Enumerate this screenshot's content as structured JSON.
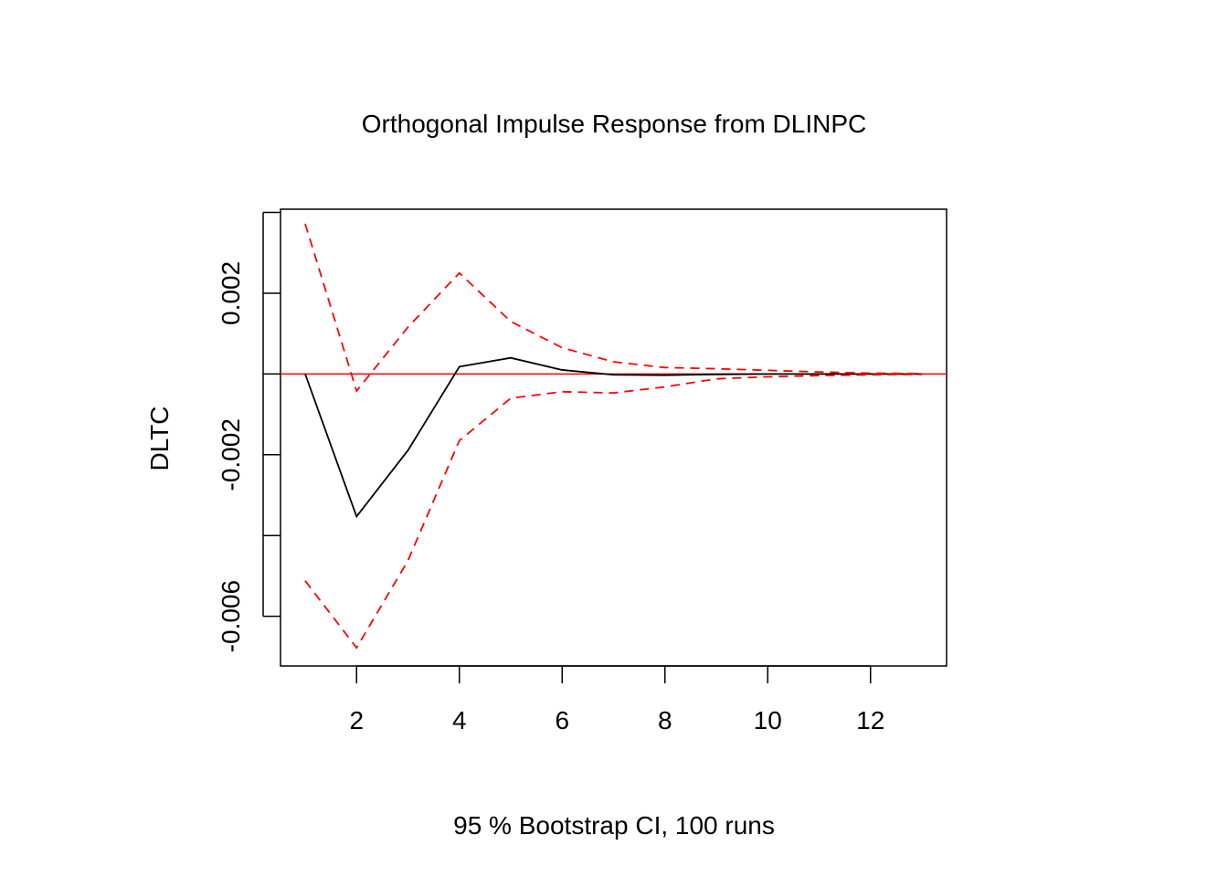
{
  "chart_data": {
    "type": "line",
    "title": "Orthogonal Impulse Response from DLINPC",
    "xlabel": "95 % Bootstrap CI,  100 runs",
    "ylabel": "DLTC",
    "xlim": [
      0.52,
      13.48
    ],
    "ylim": [
      -0.00723,
      0.00408
    ],
    "x_ticks": [
      2,
      4,
      6,
      8,
      10,
      12
    ],
    "x_tick_labels": [
      "2",
      "4",
      "6",
      "8",
      "10",
      "12"
    ],
    "y_ticks": [
      -0.006,
      -0.004,
      -0.002,
      0.0,
      0.002,
      0.004
    ],
    "y_tick_labels": [
      "-0.006",
      "",
      "-0.002",
      "",
      "0.002",
      ""
    ],
    "x": [
      1,
      2,
      3,
      4,
      5,
      6,
      7,
      8,
      9,
      10,
      11,
      12,
      13
    ],
    "series": [
      {
        "role": "irf",
        "color": "#000000",
        "dash": "solid",
        "values": [
          0.0,
          -0.00353,
          -0.00189,
          0.00018,
          0.0004,
          0.0001,
          -2e-05,
          -3e-05,
          -1e-05,
          0.0,
          0.0,
          0.0,
          0.0
        ]
      },
      {
        "role": "upper",
        "color": "#ff0000",
        "dash": "dashed",
        "values": [
          0.00372,
          -0.00042,
          0.00116,
          0.0025,
          0.0013,
          0.00065,
          0.0003,
          0.00016,
          0.00013,
          9e-05,
          5e-05,
          2e-05,
          1e-05
        ]
      },
      {
        "role": "lower",
        "color": "#ff0000",
        "dash": "dashed",
        "values": [
          -0.00512,
          -0.00678,
          -0.00462,
          -0.00165,
          -0.0006,
          -0.00044,
          -0.00047,
          -0.00032,
          -0.00012,
          -7e-05,
          -4e-05,
          -2e-05,
          -1e-05
        ]
      }
    ],
    "reference_line": {
      "y": 0,
      "color": "#ff0000"
    },
    "grid": false,
    "legend": "none"
  }
}
